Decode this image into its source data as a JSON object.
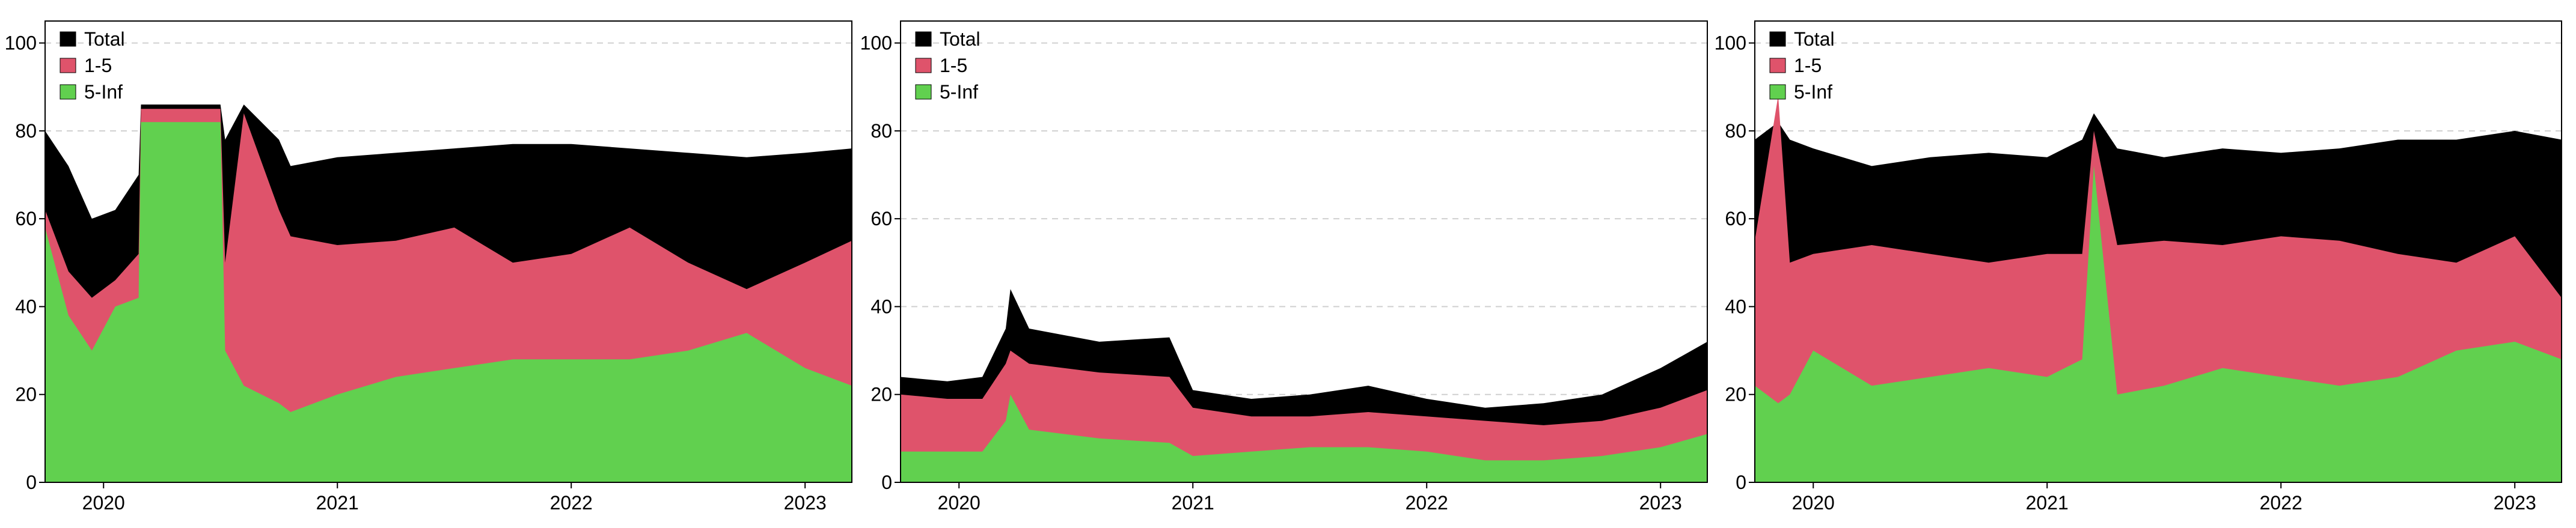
{
  "colors": {
    "total": "#000000",
    "one_to_five": "#DF536B",
    "five_inf": "#61D04F",
    "grid": "#d0d0d0"
  },
  "chart_data": [
    {
      "type": "area",
      "y_axis_visible": true,
      "ylim": [
        0,
        105
      ],
      "yticks": [
        "0",
        "20",
        "40",
        "60",
        "80",
        "100"
      ],
      "x_range": [
        2019.75,
        2023.2
      ],
      "xticks": [
        {
          "value": 2020,
          "label": "2020"
        },
        {
          "value": 2021,
          "label": "2021"
        },
        {
          "value": 2022,
          "label": "2022"
        },
        {
          "value": 2023,
          "label": "2023"
        }
      ],
      "grid": "horizontal dashed",
      "legend": "top-left",
      "series": [
        {
          "name": "Total",
          "key": "total",
          "x": [
            2019.75,
            2019.85,
            2019.95,
            2020.05,
            2020.15,
            2020.16,
            2020.5,
            2020.52,
            2020.6,
            2020.75,
            2020.8,
            2021.0,
            2021.25,
            2021.5,
            2021.75,
            2022.0,
            2022.25,
            2022.5,
            2022.75,
            2023.0,
            2023.2
          ],
          "y": [
            80,
            72,
            60,
            62,
            70,
            86,
            86,
            78,
            86,
            78,
            72,
            74,
            75,
            76,
            77,
            77,
            76,
            75,
            74,
            75,
            76
          ]
        },
        {
          "name": "1-5",
          "key": "one_to_five",
          "x": [
            2019.75,
            2019.85,
            2019.95,
            2020.05,
            2020.15,
            2020.16,
            2020.5,
            2020.52,
            2020.6,
            2020.75,
            2020.8,
            2021.0,
            2021.25,
            2021.5,
            2021.75,
            2022.0,
            2022.25,
            2022.5,
            2022.75,
            2023.0,
            2023.2
          ],
          "y": [
            62,
            48,
            42,
            46,
            52,
            85,
            85,
            50,
            84,
            62,
            56,
            54,
            55,
            58,
            50,
            52,
            58,
            50,
            44,
            50,
            55
          ]
        },
        {
          "name": "5-Inf",
          "key": "five_inf",
          "x": [
            2019.75,
            2019.85,
            2019.95,
            2020.05,
            2020.15,
            2020.16,
            2020.5,
            2020.52,
            2020.6,
            2020.75,
            2020.8,
            2021.0,
            2021.25,
            2021.5,
            2021.75,
            2022.0,
            2022.25,
            2022.5,
            2022.75,
            2023.0,
            2023.2
          ],
          "y": [
            58,
            38,
            30,
            40,
            42,
            82,
            82,
            30,
            22,
            18,
            16,
            20,
            24,
            26,
            28,
            28,
            28,
            30,
            34,
            26,
            22
          ]
        }
      ]
    },
    {
      "type": "area",
      "y_axis_visible": true,
      "ylim": [
        0,
        105
      ],
      "yticks": [
        "0",
        "20",
        "40",
        "60",
        "80",
        "100"
      ],
      "x_range": [
        2019.75,
        2023.2
      ],
      "xticks": [
        {
          "value": 2020,
          "label": "2020"
        },
        {
          "value": 2021,
          "label": "2021"
        },
        {
          "value": 2022,
          "label": "2022"
        },
        {
          "value": 2023,
          "label": "2023"
        }
      ],
      "grid": "horizontal dashed",
      "legend": "top-left",
      "series": [
        {
          "name": "Total",
          "key": "total",
          "x": [
            2019.75,
            2019.95,
            2020.1,
            2020.2,
            2020.22,
            2020.3,
            2020.6,
            2020.9,
            2021.0,
            2021.25,
            2021.5,
            2021.75,
            2022.0,
            2022.25,
            2022.5,
            2022.75,
            2023.0,
            2023.2
          ],
          "y": [
            24,
            23,
            24,
            35,
            44,
            35,
            32,
            33,
            21,
            19,
            20,
            22,
            19,
            17,
            18,
            20,
            26,
            32
          ]
        },
        {
          "name": "1-5",
          "key": "one_to_five",
          "x": [
            2019.75,
            2019.95,
            2020.1,
            2020.2,
            2020.22,
            2020.3,
            2020.6,
            2020.9,
            2021.0,
            2021.25,
            2021.5,
            2021.75,
            2022.0,
            2022.25,
            2022.5,
            2022.75,
            2023.0,
            2023.2
          ],
          "y": [
            20,
            19,
            19,
            27,
            30,
            27,
            25,
            24,
            17,
            15,
            15,
            16,
            15,
            14,
            13,
            14,
            17,
            21
          ]
        },
        {
          "name": "5-Inf",
          "key": "five_inf",
          "x": [
            2019.75,
            2019.95,
            2020.1,
            2020.2,
            2020.22,
            2020.3,
            2020.6,
            2020.9,
            2021.0,
            2021.25,
            2021.5,
            2021.75,
            2022.0,
            2022.25,
            2022.5,
            2022.75,
            2023.0,
            2023.2
          ],
          "y": [
            7,
            7,
            7,
            14,
            20,
            12,
            10,
            9,
            6,
            7,
            8,
            8,
            7,
            5,
            5,
            6,
            8,
            11
          ]
        }
      ]
    },
    {
      "type": "area",
      "y_axis_visible": true,
      "ylim": [
        0,
        105
      ],
      "yticks": [
        "0",
        "20",
        "40",
        "60",
        "80",
        "100"
      ],
      "x_range": [
        2019.75,
        2023.2
      ],
      "xticks": [
        {
          "value": 2020,
          "label": "2020"
        },
        {
          "value": 2021,
          "label": "2021"
        },
        {
          "value": 2022,
          "label": "2022"
        },
        {
          "value": 2023,
          "label": "2023"
        }
      ],
      "grid": "horizontal dashed",
      "legend": "top-left",
      "series": [
        {
          "name": "Total",
          "key": "total",
          "x": [
            2019.75,
            2019.85,
            2019.9,
            2020.0,
            2020.25,
            2020.5,
            2020.75,
            2021.0,
            2021.15,
            2021.2,
            2021.3,
            2021.5,
            2021.75,
            2022.0,
            2022.25,
            2022.5,
            2022.75,
            2023.0,
            2023.2
          ],
          "y": [
            78,
            82,
            78,
            76,
            72,
            74,
            75,
            74,
            78,
            84,
            76,
            74,
            76,
            75,
            76,
            78,
            78,
            80,
            78
          ]
        },
        {
          "name": "1-5",
          "key": "one_to_five",
          "x": [
            2019.75,
            2019.85,
            2019.9,
            2020.0,
            2020.25,
            2020.5,
            2020.75,
            2021.0,
            2021.15,
            2021.2,
            2021.3,
            2021.5,
            2021.75,
            2022.0,
            2022.25,
            2022.5,
            2022.75,
            2023.0,
            2023.2
          ],
          "y": [
            55,
            88,
            50,
            52,
            54,
            52,
            50,
            52,
            52,
            80,
            54,
            55,
            54,
            56,
            55,
            52,
            50,
            56,
            42
          ]
        },
        {
          "name": "5-Inf",
          "key": "five_inf",
          "x": [
            2019.75,
            2019.85,
            2019.9,
            2020.0,
            2020.25,
            2020.5,
            2020.75,
            2021.0,
            2021.15,
            2021.2,
            2021.3,
            2021.5,
            2021.75,
            2022.0,
            2022.25,
            2022.5,
            2022.75,
            2023.0,
            2023.2
          ],
          "y": [
            22,
            18,
            20,
            30,
            22,
            24,
            26,
            24,
            28,
            72,
            20,
            22,
            26,
            24,
            22,
            24,
            30,
            32,
            28
          ]
        }
      ]
    }
  ]
}
